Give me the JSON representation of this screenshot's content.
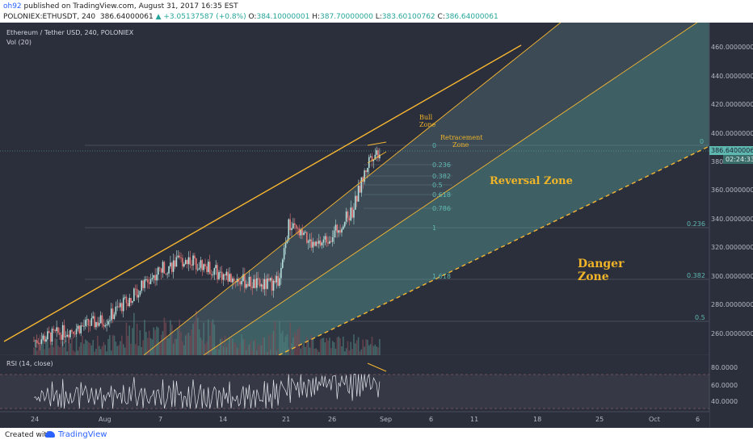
{
  "header": {
    "author": "oh92",
    "published_text": "published on TradingView.com, August 31, 2017 16:35 EST",
    "symbol": "POLONIEX:ETHUSDT, 240",
    "last": "386.64000061",
    "change": "▲ +3.05137587 (+0.8%)",
    "o_label": "O:",
    "o": "384.10000001",
    "h_label": "H:",
    "h": "387.70000000",
    "l_label": "L:",
    "l": "383.60100762",
    "c_label": "C:",
    "c": "386.64000061"
  },
  "chart": {
    "title": "Ethereum / Tether USD, 240, POLONIEX",
    "vol_label": "Vol (20)",
    "rsi_label": "RSI (14, close)",
    "price_tag": "386.64000061",
    "timer_tag": "02:24:33"
  },
  "colors": {
    "background": "#2b2e3b",
    "up": "#b2dfdb",
    "down": "#e57373",
    "channel": "#f7b731",
    "fib": "#5fb8b0",
    "zone_fill": "#4e8a87",
    "annotation": "#f0b429"
  },
  "chart_data": {
    "type": "candlestick",
    "title": "Ethereum / Tether USD, 240, POLONIEX",
    "y_axis": {
      "ticks": [
        "460.00000000",
        "440.00000000",
        "420.00000000",
        "400.00000000",
        "380.00000000",
        "360.00000000",
        "340.00000000",
        "320.00000000",
        "300.00000000",
        "280.00000000",
        "260.00000000"
      ],
      "range": [
        245,
        476
      ]
    },
    "x_axis": {
      "ticks": [
        "24",
        "Aug",
        "7",
        "14",
        "21",
        "26",
        "Sep",
        "6",
        "11",
        "18",
        "25",
        "Oct",
        "6"
      ]
    },
    "rsi_axis": {
      "ticks": [
        "80.0000",
        "60.0000",
        "40.0000"
      ]
    },
    "annotations": [
      {
        "text": "Bull",
        "line2": "Zone"
      },
      {
        "text": "Retracement",
        "line2": "Zone"
      },
      {
        "text": "Reversal Zone"
      },
      {
        "text": "Danger",
        "line2": "Zone"
      }
    ],
    "fib_levels_left": [
      "0",
      "0.236",
      "0.382",
      "0.5",
      "0.618",
      "0.786",
      "1",
      "1.618"
    ],
    "fib_levels_right": [
      "0",
      "0.236",
      "0.382",
      "0.5"
    ],
    "price_points": [
      {
        "x": "Jul 24",
        "y": 255
      },
      {
        "x": "Aug 1",
        "y": 270
      },
      {
        "x": "Aug 7",
        "y": 305
      },
      {
        "x": "Aug 10",
        "y": 312
      },
      {
        "x": "Aug 14",
        "y": 300
      },
      {
        "x": "Aug 18",
        "y": 293
      },
      {
        "x": "Aug 20",
        "y": 296
      },
      {
        "x": "Aug 21",
        "y": 335
      },
      {
        "x": "Aug 24",
        "y": 320
      },
      {
        "x": "Aug 26",
        "y": 330
      },
      {
        "x": "Aug 28",
        "y": 345
      },
      {
        "x": "Aug 30",
        "y": 384
      },
      {
        "x": "Aug 31",
        "y": 386.64
      }
    ]
  }
}
